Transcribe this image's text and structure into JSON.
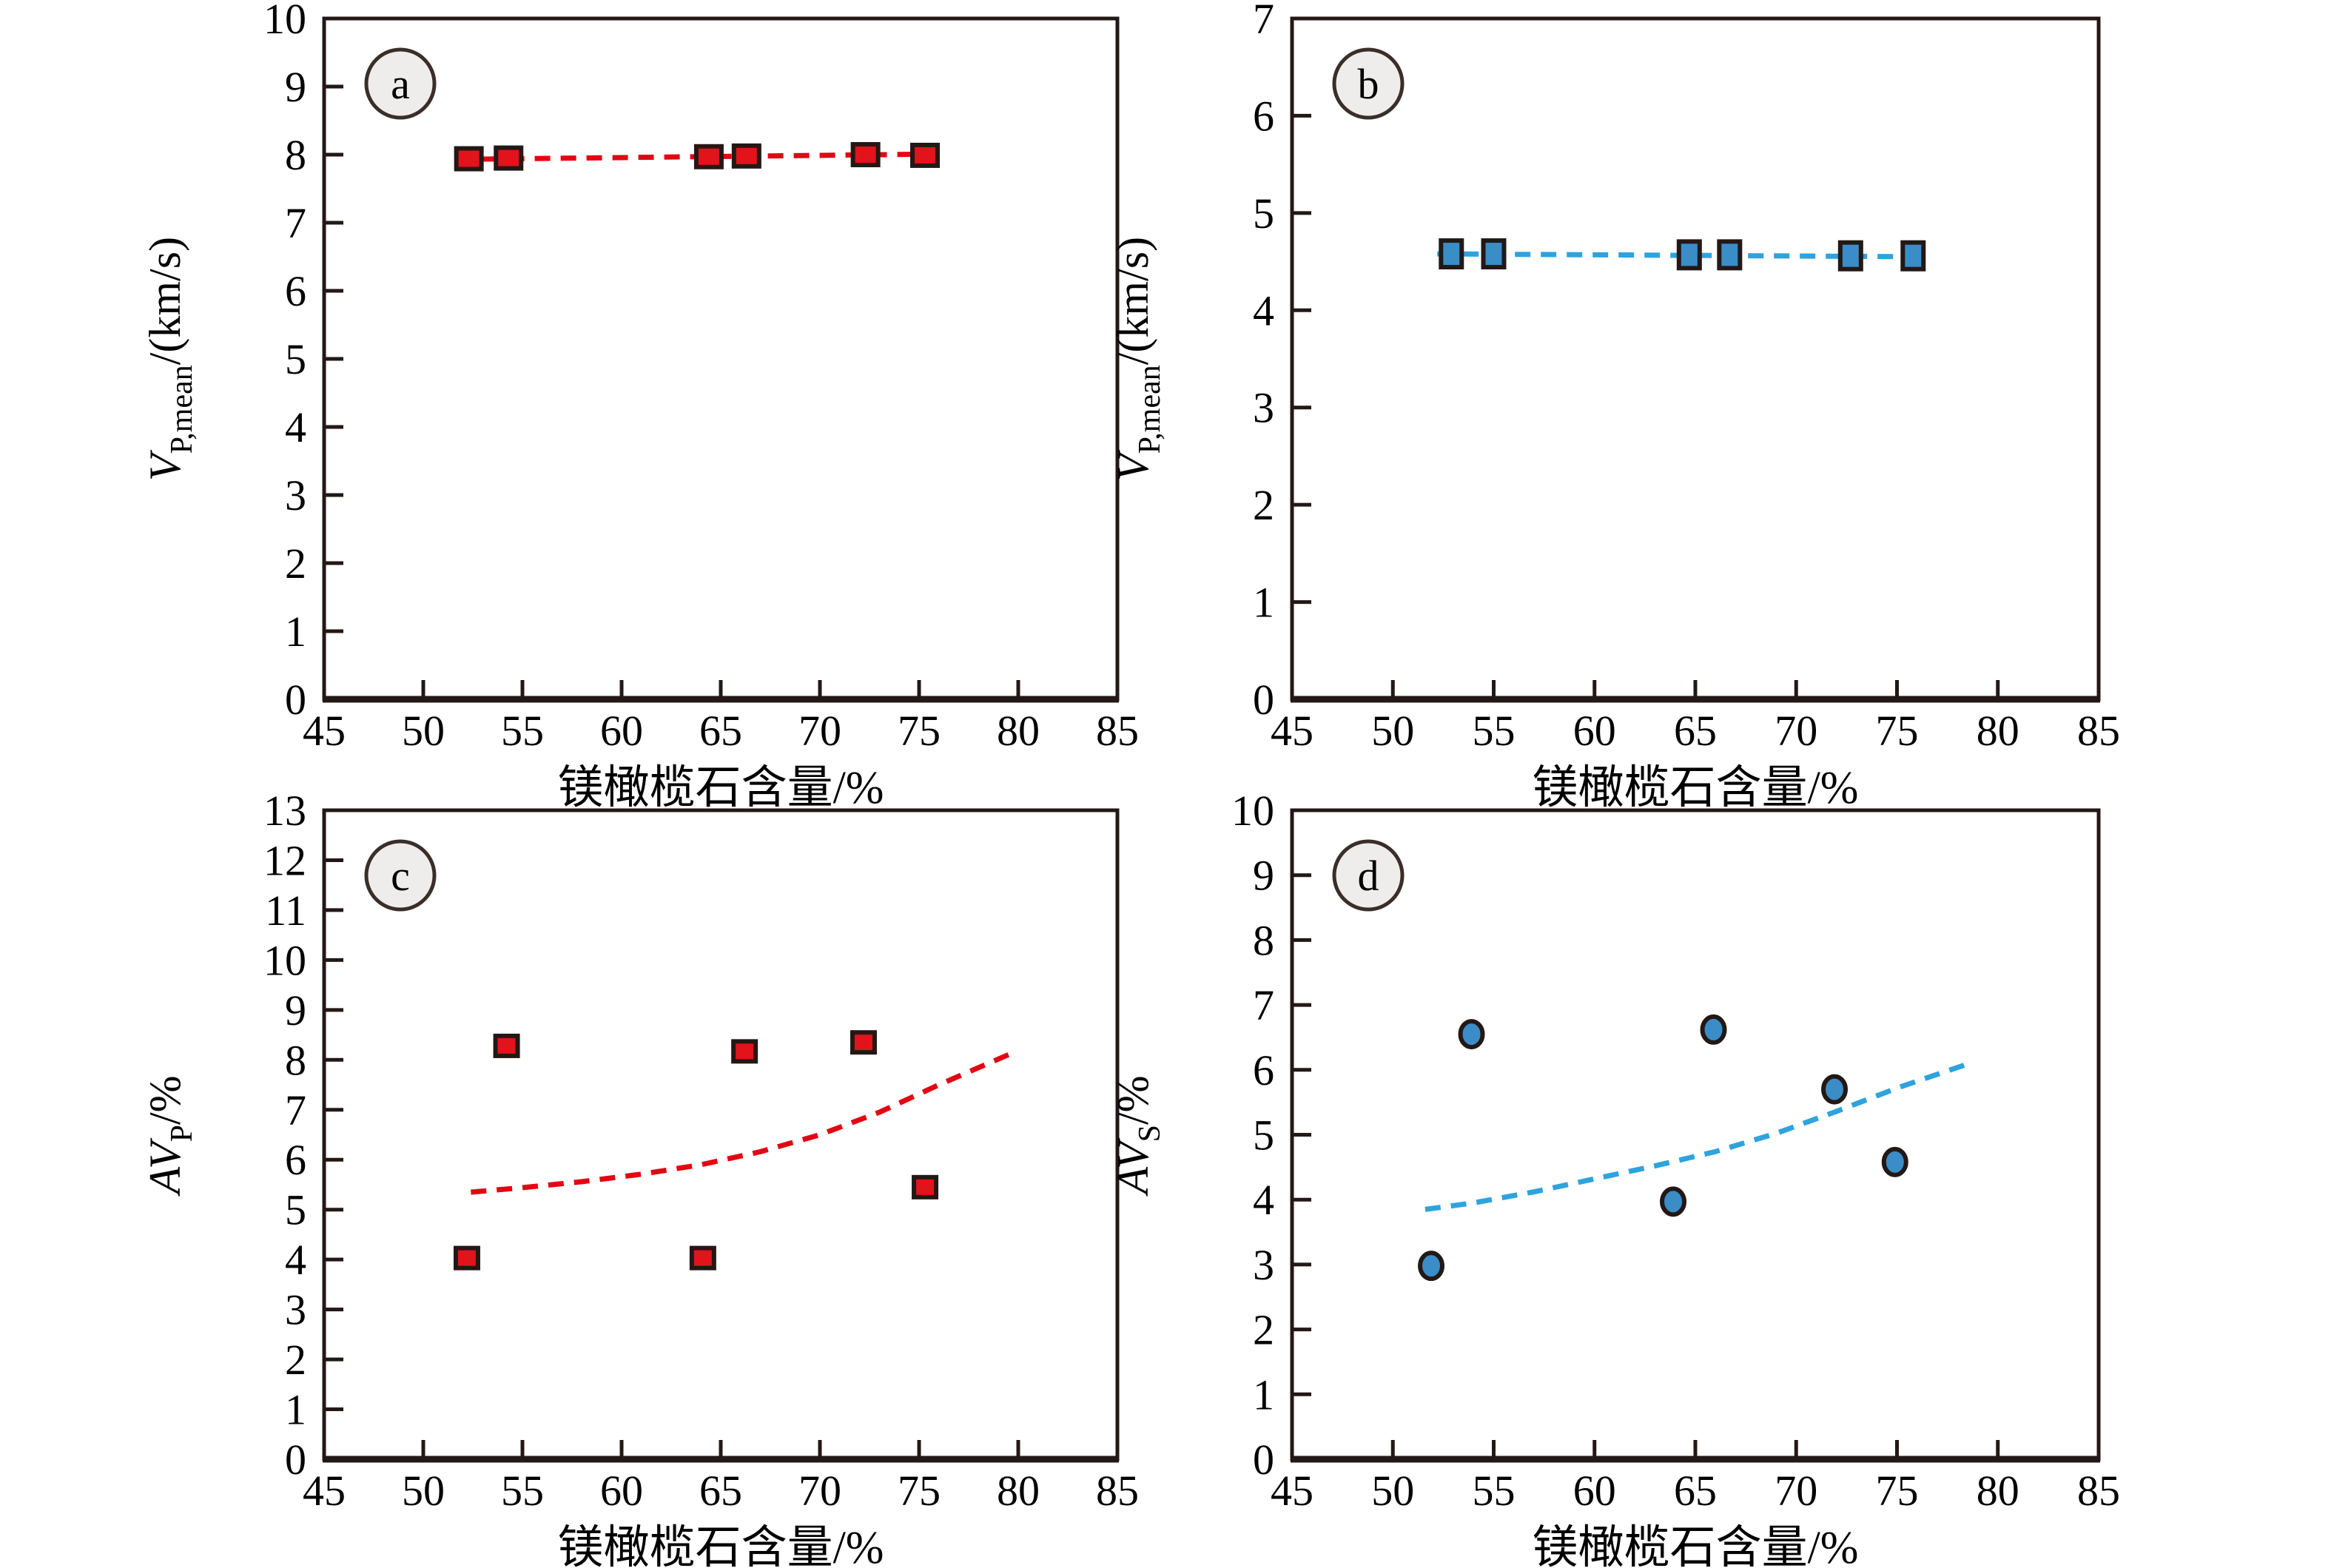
{
  "figure": {
    "background": "#ffffff",
    "axis_color": "#231815",
    "text_color": "#000000",
    "badge_fill": "#efedeb",
    "badge_border": "#3a2e28"
  },
  "chart_data": [
    {
      "panel_label": "a",
      "type": "scatter",
      "marker": "square",
      "marker_fill": "#e2131b",
      "marker_border": "#231815",
      "trend_color": "#e30613",
      "trend_style": "dashed",
      "legend": "none",
      "grid": "off",
      "xlabel": "镁橄榄石含量/%",
      "ylabel_parts": [
        {
          "t": "V",
          "s": "i"
        },
        {
          "t": "P,mean",
          "s": "sub"
        },
        {
          "t": "/(km/s)",
          "s": "n"
        }
      ],
      "xlim": [
        45,
        85
      ],
      "xticks": [
        45,
        50,
        55,
        60,
        65,
        70,
        75,
        80,
        85
      ],
      "ylim": [
        0,
        10
      ],
      "yticks": [
        0,
        1,
        2,
        3,
        4,
        5,
        6,
        7,
        8,
        9,
        10
      ],
      "x": [
        52.3,
        54.3,
        64.4,
        66.3,
        72.3,
        75.3
      ],
      "y": [
        7.94,
        7.95,
        7.97,
        7.98,
        8.0,
        7.99
      ],
      "trend_x": [
        51.7,
        76.2
      ],
      "trend_y": [
        7.93,
        8.01
      ]
    },
    {
      "panel_label": "b",
      "type": "scatter",
      "marker": "square",
      "marker_fill": "#3a8dc7",
      "marker_border": "#231815",
      "trend_color": "#2ea3dd",
      "trend_style": "dashed",
      "legend": "none",
      "grid": "off",
      "xlabel": "镁橄榄石含量/%",
      "ylabel_parts": [
        {
          "t": "V",
          "s": "i"
        },
        {
          "t": "P,mean",
          "s": "sub"
        },
        {
          "t": "/(km/s)",
          "s": "n"
        }
      ],
      "xlim": [
        45,
        85
      ],
      "xticks": [
        45,
        50,
        55,
        60,
        65,
        70,
        75,
        80,
        85
      ],
      "ylim": [
        0,
        7
      ],
      "yticks": [
        0,
        1,
        2,
        3,
        4,
        5,
        6,
        7
      ],
      "x": [
        52.9,
        55.0,
        64.7,
        66.7,
        72.7,
        75.8
      ],
      "y": [
        4.58,
        4.58,
        4.57,
        4.57,
        4.56,
        4.56
      ],
      "trend_x": [
        52.2,
        76.5
      ],
      "trend_y": [
        4.58,
        4.55
      ]
    },
    {
      "panel_label": "c",
      "type": "scatter",
      "marker": "square",
      "marker_fill": "#e2131b",
      "marker_border": "#231815",
      "trend_color": "#e30613",
      "trend_style": "dashed",
      "legend": "none",
      "grid": "off",
      "xlabel": "镁橄榄石含量/%",
      "ylabel_parts": [
        {
          "t": "AV",
          "s": "i"
        },
        {
          "t": "P",
          "s": "sub"
        },
        {
          "t": "/%",
          "s": "n"
        }
      ],
      "xlim": [
        45,
        85
      ],
      "xticks": [
        45,
        50,
        55,
        60,
        65,
        70,
        75,
        80,
        85
      ],
      "ylim": [
        0,
        13
      ],
      "yticks": [
        0,
        1,
        2,
        3,
        4,
        5,
        6,
        7,
        8,
        9,
        10,
        11,
        12,
        13
      ],
      "x": [
        52.2,
        54.2,
        64.1,
        66.2,
        72.2,
        75.3
      ],
      "y": [
        4.03,
        8.28,
        4.03,
        8.17,
        8.35,
        5.45
      ],
      "trend_x": [
        52.4,
        55,
        58,
        61,
        64,
        67,
        70,
        73,
        76,
        79.6
      ],
      "trend_y": [
        5.35,
        5.44,
        5.56,
        5.71,
        5.9,
        6.16,
        6.5,
        6.95,
        7.5,
        8.12
      ]
    },
    {
      "panel_label": "d",
      "type": "scatter",
      "marker": "circle",
      "marker_fill": "#3a8dc7",
      "marker_border": "#231815",
      "trend_color": "#2ea3dd",
      "trend_style": "dashed",
      "legend": "none",
      "grid": "off",
      "xlabel": "镁橄榄石含量/%",
      "ylabel_parts": [
        {
          "t": "AV",
          "s": "i"
        },
        {
          "t": "S",
          "s": "sub"
        },
        {
          "t": "/%",
          "s": "n"
        }
      ],
      "xlim": [
        45,
        85
      ],
      "xticks": [
        45,
        50,
        55,
        60,
        65,
        70,
        75,
        80,
        85
      ],
      "ylim": [
        0,
        10
      ],
      "yticks": [
        0,
        1,
        2,
        3,
        4,
        5,
        6,
        7,
        8,
        9,
        10
      ],
      "x": [
        51.9,
        53.9,
        63.9,
        65.9,
        71.9,
        74.9
      ],
      "y": [
        2.98,
        6.55,
        3.97,
        6.62,
        5.7,
        4.58
      ],
      "trend_x": [
        51.6,
        54,
        57,
        60,
        63,
        66,
        69,
        72,
        75,
        78.4
      ],
      "trend_y": [
        3.85,
        3.95,
        4.12,
        4.32,
        4.52,
        4.74,
        5.02,
        5.36,
        5.72,
        6.08
      ]
    }
  ]
}
